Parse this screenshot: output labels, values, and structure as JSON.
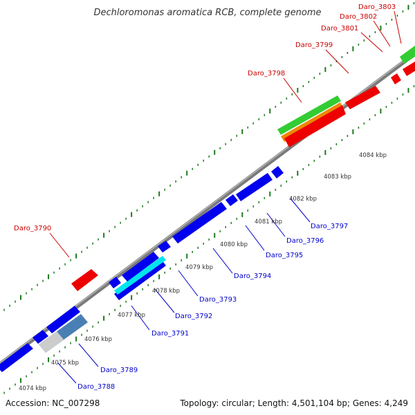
{
  "title": "Dechloromonas aromatica RCB, complete genome",
  "footer": {
    "accession": "Accession: NC_007298",
    "topology": "Topology: circular; Length: 4,501,104 bp; Genes: 4,249"
  },
  "colors": {
    "forward_gene_label": "#cc0000",
    "reverse_gene_label": "#0000cc",
    "forward_gene": "#ee0000",
    "reverse_gene": "#0000ee",
    "backbone": "#888888",
    "tick": "#1a7a1a"
  },
  "scale_labels": [
    "4074 kbp",
    "4075 kbp",
    "4076 kbp",
    "4077 kbp",
    "4078 kbp",
    "4079 kbp",
    "4080 kbp",
    "4081 kbp",
    "4082 kbp",
    "4083 kbp",
    "4084 kbp"
  ],
  "genes_forward_strand": [
    "Daro_3790",
    "Daro_3798",
    "Daro_3799",
    "Daro_3801",
    "Daro_3802",
    "Daro_3803"
  ],
  "genes_reverse_strand": [
    "Daro_3788",
    "Daro_3789",
    "Daro_3791",
    "Daro_3792",
    "Daro_3793",
    "Daro_3794",
    "Daro_3795",
    "Daro_3796",
    "Daro_3797"
  ]
}
